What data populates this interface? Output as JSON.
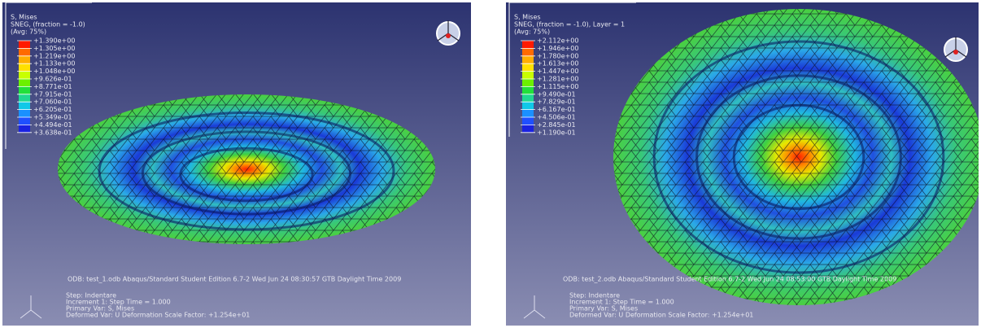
{
  "panels": [
    {
      "legend_title": "S, Mises",
      "legend_subtitle": "SNEG, (fraction = -1.0)",
      "legend_avg": "(Avg: 75%)",
      "legend_values": [
        "+1.390e+00",
        "+1.305e+00",
        "+1.219e+00",
        "+1.133e+00",
        "+1.048e+00",
        "+9.626e-01",
        "+8.771e-01",
        "+7.915e-01",
        "+7.060e-01",
        "+6.205e-01",
        "+5.349e-01",
        "+4.494e-01",
        "+3.638e-01"
      ],
      "odb_line": "ODB: test_1.odb    Abaqus/Standard Student Edition 6.7-2    Wed Jun 24 08:30:57 GTB Daylight Time 2009",
      "step": "Step: Indentare",
      "increment": "Increment    1: Step Time =    1.000",
      "primary_var": "Primary Var: S, Mises",
      "deformed_var": "Deformed Var: U   Deformation Scale Factor: +1.254e+01"
    },
    {
      "legend_title": "S, Mises",
      "legend_subtitle": "SNEG, (fraction = -1.0), Layer = 1",
      "legend_avg": "(Avg: 75%)",
      "legend_values": [
        "+2.112e+00",
        "+1.946e+00",
        "+1.780e+00",
        "+1.613e+00",
        "+1.447e+00",
        "+1.281e+00",
        "+1.115e+00",
        "+9.490e-01",
        "+7.829e-01",
        "+6.167e-01",
        "+4.506e-01",
        "+2.845e-01",
        "+1.190e-01"
      ],
      "odb_line": "ODB: test_2.odb    Abaqus/Standard Student Edition 6.7-2    Wed Jun 24 08:53:00 GTB Daylight Time 2009",
      "step": "Step: Indentare",
      "increment": "Increment    1: Step Time =    1.000",
      "primary_var": "Primary Var: S, Mises",
      "deformed_var": "Deformed Var: U   Deformation Scale Factor: +1.254e+01"
    }
  ]
}
